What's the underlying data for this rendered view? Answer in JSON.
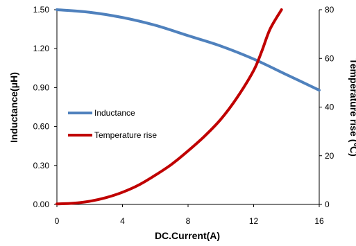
{
  "chart_data": {
    "type": "line",
    "xlabel": "DC.Current(A)",
    "ylabel_left": "Inductance(μH)",
    "ylabel_right": "Temperature rise (℃)",
    "x_ticks": [
      "0",
      "4",
      "8",
      "12",
      "16"
    ],
    "y_left_ticks": [
      "0.00",
      "0.30",
      "0.60",
      "0.90",
      "1.20",
      "1.50"
    ],
    "y_right_ticks": [
      "0",
      "20",
      "40",
      "60",
      "80"
    ],
    "xlim": [
      0,
      16
    ],
    "ylim_left": [
      0,
      1.5
    ],
    "ylim_right": [
      0,
      80
    ],
    "grid": false,
    "legend_position": "middle-left",
    "series": [
      {
        "name": "Inductance",
        "axis": "left",
        "color": "#4f81bd",
        "x": [
          0,
          2,
          4,
          6,
          8,
          10,
          12,
          14,
          16
        ],
        "values": [
          1.5,
          1.48,
          1.44,
          1.38,
          1.3,
          1.22,
          1.12,
          1.0,
          0.88
        ]
      },
      {
        "name": "Temperature rise",
        "axis": "right",
        "color": "#c00000",
        "x": [
          0,
          1,
          2,
          3,
          4,
          5,
          6,
          7,
          8,
          9,
          10,
          11,
          12,
          12.5,
          13,
          13.7
        ],
        "values": [
          0.2,
          0.5,
          1.3,
          2.8,
          5,
          8,
          12,
          16.5,
          22,
          28,
          35,
          44,
          55,
          63,
          72,
          80
        ]
      }
    ]
  }
}
